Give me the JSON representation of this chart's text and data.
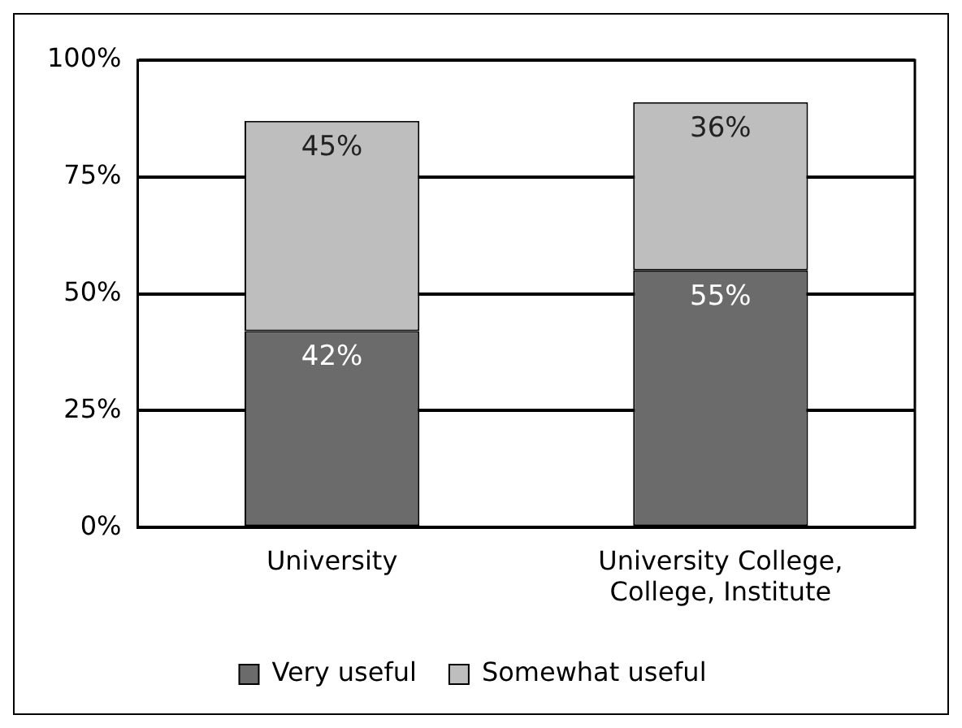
{
  "chart_data": {
    "type": "bar",
    "stacked": true,
    "categories": [
      "University",
      "University College, College, Institute"
    ],
    "series": [
      {
        "name": "Very useful",
        "color": "#6b6b6b",
        "values": [
          42,
          55
        ],
        "value_labels": [
          "42%",
          "55%"
        ]
      },
      {
        "name": "Somewhat useful",
        "color": "#bebebe",
        "values": [
          45,
          36
        ],
        "value_labels": [
          "45%",
          "36%"
        ]
      }
    ],
    "ylim": [
      0,
      100
    ],
    "yticks": [
      {
        "value": 0,
        "label": "0%"
      },
      {
        "value": 25,
        "label": "25%"
      },
      {
        "value": 50,
        "label": "50%"
      },
      {
        "value": 75,
        "label": "75%"
      },
      {
        "value": 100,
        "label": "100%"
      }
    ],
    "grid": "y",
    "legend": "bottom"
  }
}
